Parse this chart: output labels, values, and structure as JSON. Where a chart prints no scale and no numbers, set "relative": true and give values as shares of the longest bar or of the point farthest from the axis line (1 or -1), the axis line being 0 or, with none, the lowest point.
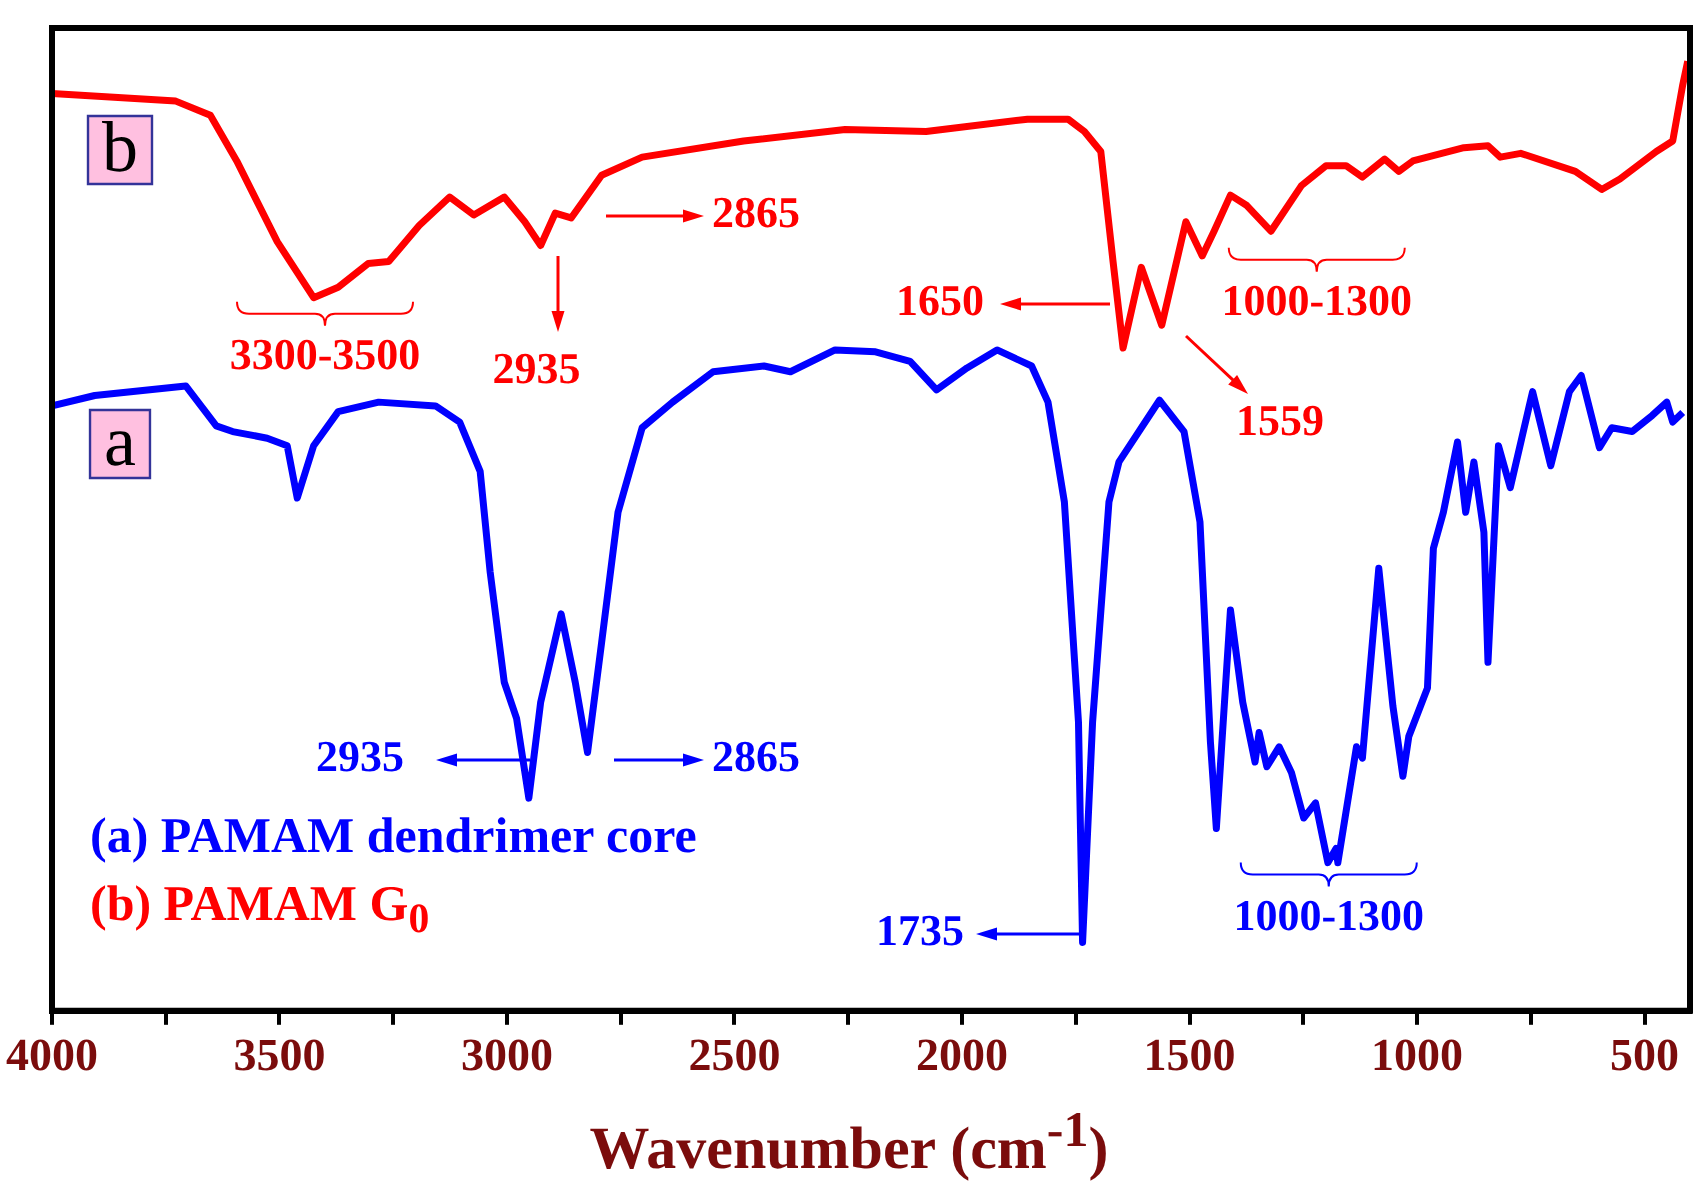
{
  "chart_data": {
    "type": "line",
    "relative": true,
    "xlabel": "Wavenumber (cm$^{-1}$)",
    "xlim": [
      4000,
      400
    ],
    "xticks": [
      4000,
      {
        "value": 3750,
        "label": null
      },
      3500,
      {
        "value": 3250,
        "label": null
      },
      3000,
      {
        "value": 2750,
        "label": null
      },
      2500,
      {
        "value": 2250,
        "label": null
      },
      2000,
      {
        "value": 1750,
        "label": null
      },
      1500,
      {
        "value": 1250,
        "label": null
      },
      1000,
      {
        "value": 750,
        "label": null
      },
      500
    ],
    "legend": "bottom left",
    "series": [
      {
        "name": "(a) PAMAM dendrimer core",
        "color": "#0000ff",
        "x": [
          4000,
          3906,
          3706,
          3639,
          3603,
          3527,
          3483,
          3461,
          3425,
          3371,
          3282,
          3157,
          3104,
          3059,
          3037,
          3006,
          2979,
          2952,
          2926,
          2881,
          2850,
          2823,
          2792,
          2756,
          2703,
          2636,
          2547,
          2435,
          2377,
          2279,
          2190,
          2114,
          2056,
          1989,
          1923,
          1847,
          1811,
          1775,
          1744,
          1735,
          1713,
          1677,
          1655,
          1566,
          1512,
          1477,
          1454,
          1441,
          1410,
          1383,
          1356,
          1347,
          1330,
          1303,
          1276,
          1249,
          1223,
          1196,
          1178,
          1174,
          1133,
          1120,
          1084,
          1053,
          1031,
          1018,
          977,
          964,
          942,
          911,
          893,
          875,
          853,
          844,
          821,
          795,
          746,
          706,
          665,
          639,
          599,
          572,
          527,
          483,
          451,
          438,
          416
        ],
        "values": [
          0.637,
          0.648,
          0.658,
          0.616,
          0.61,
          0.603,
          0.595,
          0.54,
          0.595,
          0.631,
          0.641,
          0.637,
          0.62,
          0.568,
          0.462,
          0.346,
          0.308,
          0.224,
          0.325,
          0.418,
          0.346,
          0.272,
          0.388,
          0.525,
          0.614,
          0.641,
          0.673,
          0.679,
          0.673,
          0.696,
          0.694,
          0.684,
          0.654,
          0.677,
          0.696,
          0.679,
          0.641,
          0.536,
          0.304,
          0.072,
          0.304,
          0.536,
          0.578,
          0.643,
          0.61,
          0.515,
          0.283,
          0.192,
          0.422,
          0.325,
          0.262,
          0.293,
          0.257,
          0.278,
          0.251,
          0.203,
          0.219,
          0.156,
          0.171,
          0.156,
          0.278,
          0.266,
          0.466,
          0.321,
          0.247,
          0.289,
          0.34,
          0.487,
          0.525,
          0.599,
          0.525,
          0.578,
          0.504,
          0.367,
          0.595,
          0.551,
          0.652,
          0.574,
          0.652,
          0.669,
          0.593,
          0.614,
          0.61,
          0.627,
          0.641,
          0.62,
          0.63
        ]
      },
      {
        "name": "(b) PAMAM G$_{0}$",
        "color": "#ff0000",
        "x": [
          4000,
          3728,
          3652,
          3594,
          3505,
          3425,
          3371,
          3305,
          3260,
          3193,
          3126,
          3073,
          3006,
          2961,
          2926,
          2894,
          2859,
          2792,
          2703,
          2480,
          2257,
          2079,
          1856,
          1767,
          1731,
          1695,
          1668,
          1646,
          1606,
          1561,
          1508,
          1472,
          1446,
          1410,
          1374,
          1321,
          1254,
          1200,
          1156,
          1120,
          1071,
          1040,
          1009,
          897,
          844,
          817,
          772,
          652,
          594,
          554,
          474,
          438,
          416,
          405
        ],
        "values": [
          0.966,
          0.958,
          0.943,
          0.895,
          0.81,
          0.751,
          0.762,
          0.787,
          0.789,
          0.827,
          0.857,
          0.838,
          0.857,
          0.831,
          0.806,
          0.84,
          0.835,
          0.88,
          0.899,
          0.916,
          0.928,
          0.926,
          0.939,
          0.939,
          0.926,
          0.905,
          0.789,
          0.698,
          0.783,
          0.722,
          0.831,
          0.795,
          0.821,
          0.859,
          0.848,
          0.821,
          0.869,
          0.89,
          0.89,
          0.878,
          0.897,
          0.884,
          0.895,
          0.909,
          0.911,
          0.899,
          0.903,
          0.884,
          0.865,
          0.876,
          0.905,
          0.916,
          0.975,
          1.0
        ]
      }
    ],
    "annotations": [
      "b",
      "a",
      {
        "text": "3300-3500",
        "x": 3400,
        "y": 0.751
      },
      {
        "text": "2935",
        "x": 2935,
        "y": 0.806
      },
      "2865",
      "1650",
      "1559",
      {
        "text": "1000-1300",
        "x": 1150,
        "y": 0.89
      },
      "2935",
      "2865",
      "1735",
      {
        "text": "1000-1300",
        "x": 1150,
        "y": 0.152
      }
    ]
  }
}
